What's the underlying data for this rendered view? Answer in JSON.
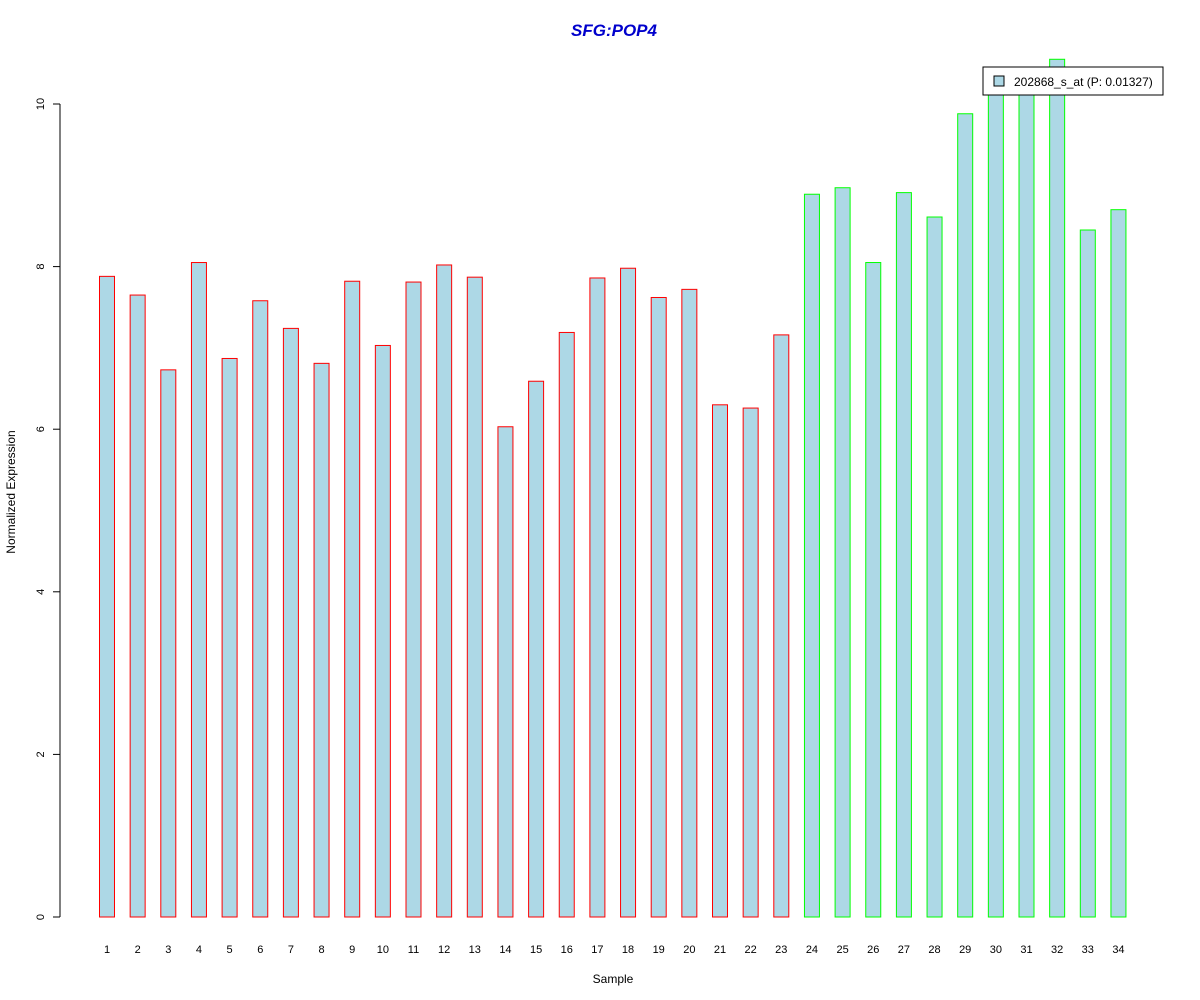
{
  "chart_data": {
    "type": "bar",
    "title": "SFG:POP4",
    "xlabel": "Sample",
    "ylabel": "Normalized Expression",
    "ylim": [
      0,
      10
    ],
    "yticks": [
      0,
      2,
      4,
      6,
      8,
      10
    ],
    "categories": [
      "1",
      "2",
      "3",
      "4",
      "5",
      "6",
      "7",
      "8",
      "9",
      "10",
      "11",
      "12",
      "13",
      "14",
      "15",
      "16",
      "17",
      "18",
      "19",
      "20",
      "21",
      "22",
      "23",
      "24",
      "25",
      "26",
      "27",
      "28",
      "29",
      "30",
      "31",
      "32",
      "33",
      "34"
    ],
    "values": [
      7.88,
      7.65,
      6.73,
      8.05,
      6.87,
      7.58,
      7.24,
      6.81,
      7.82,
      7.03,
      7.81,
      8.02,
      7.87,
      6.03,
      6.59,
      7.19,
      7.86,
      7.98,
      7.62,
      7.72,
      6.3,
      6.26,
      7.16,
      8.89,
      8.97,
      8.05,
      8.91,
      8.61,
      9.88,
      10.28,
      10.36,
      10.55,
      8.45,
      8.7
    ],
    "group_split_after": 23,
    "grid": false,
    "legend": {
      "placement": "top-right",
      "entries": [
        "202868_s_at (P: 0.01327)"
      ]
    },
    "colors": {
      "bar_fill": "#add8e6",
      "group1_border": "#ff0000",
      "group2_border": "#00ff00",
      "title": "#0000cc",
      "axis": "#000000"
    }
  }
}
